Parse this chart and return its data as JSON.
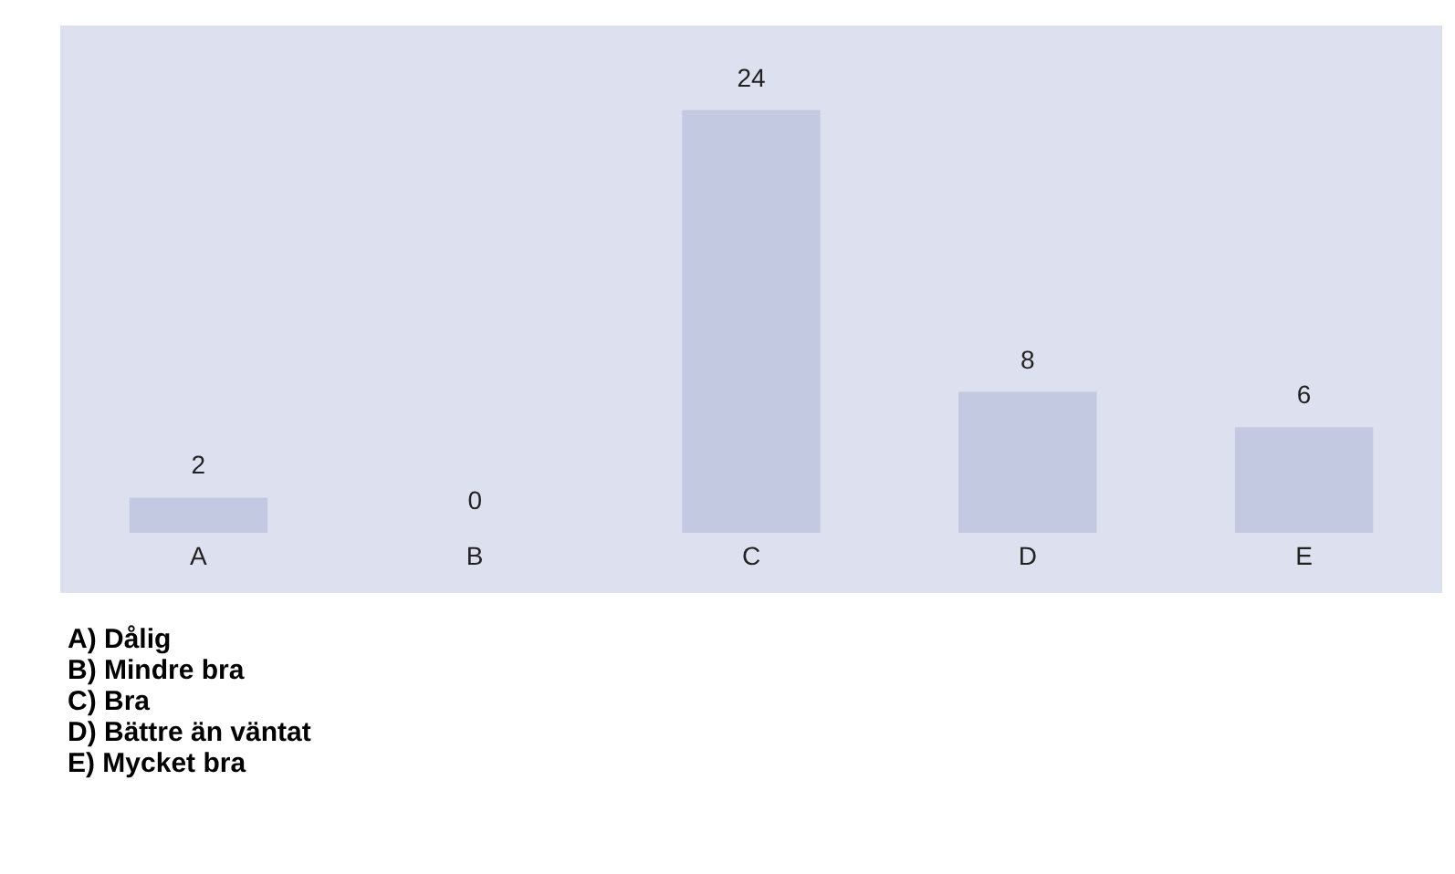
{
  "chart_data": {
    "type": "bar",
    "categories": [
      "A",
      "B",
      "C",
      "D",
      "E"
    ],
    "values": [
      2,
      0,
      24,
      8,
      6
    ],
    "color": "#c4c9e2",
    "data_labels": true,
    "grid": false,
    "tick_labels": "x",
    "annotations": [
      "A) Dålig",
      "B) Mindre bra",
      "C) Bra",
      "D) Bättre än väntat",
      "E) Mycket bra"
    ]
  }
}
